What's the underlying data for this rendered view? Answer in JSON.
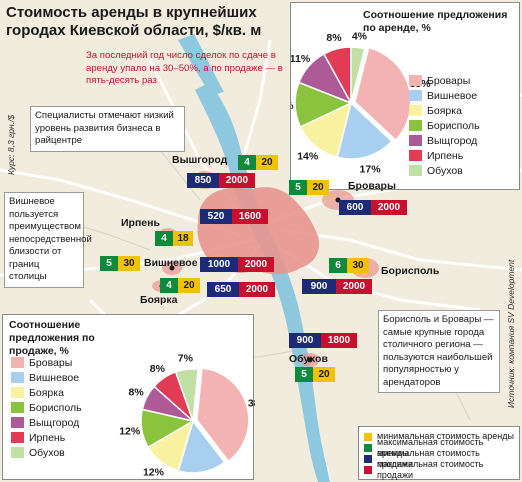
{
  "title": "Стоимость аренды в крупнейших городах Киевской области, $/кв. м",
  "notes": {
    "deals": "За последний год число сделок по сдаче в аренду упало на 30–50%, а по продаже — в пять-десять раз",
    "specialists": "Специалисты отмечают низкий уровень развития бизнеса в райцентре",
    "vishnevoe": "Вишневое пользуется преимуществом непосредственной близости от границ столицы",
    "boryspil": "Борисполь и Бровары — самые крупные города столичного региона — пользуются наибольшей популярностью у арендаторов"
  },
  "side_labels": {
    "rate": "Курс: 8,3 грн./$",
    "source": "Источник: компания SV Development"
  },
  "colors": {
    "navy": "#1d2a78",
    "red": "#c8102e",
    "green": "#0f8a3c",
    "yellow": "#f2c200",
    "water": "#8ec8df",
    "city": "#e8958f",
    "roads": "#ffffff"
  },
  "cities": [
    {
      "id": "vyshgorod",
      "name": "Вышгород",
      "rent_min": "4",
      "rent_max": "20",
      "sale_min": "850",
      "sale_max": "2000"
    },
    {
      "id": "brovary",
      "name": "Бровары",
      "rent_min": "5",
      "rent_max": "20",
      "sale_min": "600",
      "sale_max": "2000"
    },
    {
      "id": "kyiv",
      "name": "",
      "rent_min": "",
      "rent_max": "",
      "sale_min": "520",
      "sale_max": "1600"
    },
    {
      "id": "irpin",
      "name": "Ирпень",
      "rent_min": "4",
      "rent_max": "18",
      "sale_min": "",
      "sale_max": ""
    },
    {
      "id": "vishnevoe",
      "name": "Вишневое",
      "rent_min": "5",
      "rent_max": "30",
      "sale_min": "1000",
      "sale_max": "2000"
    },
    {
      "id": "boyarka",
      "name": "Боярка",
      "rent_min": "4",
      "rent_max": "20",
      "sale_min": "650",
      "sale_max": "2000"
    },
    {
      "id": "boryspil",
      "name": "Борисполь",
      "rent_min": "6",
      "rent_max": "30",
      "sale_min": "900",
      "sale_max": "2000"
    },
    {
      "id": "obukhov",
      "name": "Обухов",
      "rent_min": "5",
      "rent_max": "20",
      "sale_min": "900",
      "sale_max": "1800"
    }
  ],
  "legend": [
    {
      "label": "минимальная стоимость аренды",
      "color": "#f2c200"
    },
    {
      "label": "максимальная стоимость аренды",
      "color": "#0f8a3c"
    },
    {
      "label": "минимальная стоимость продажи",
      "color": "#1d2a78"
    },
    {
      "label": "максимальная стоимость продажи",
      "color": "#c8102e"
    }
  ],
  "chart_data": [
    {
      "type": "pie",
      "title": "Соотношение предложения по аренде, %",
      "categories": [
        "Бровары",
        "Вишневое",
        "Боярка",
        "Борисполь",
        "Выщгород",
        "Ирпень",
        "Обухов"
      ],
      "values": [
        33,
        17,
        14,
        13,
        11,
        8,
        4
      ],
      "colors": [
        "#f4b3b3",
        "#a8cff0",
        "#f8f2a0",
        "#8ac33e",
        "#ae5a96",
        "#e23b54",
        "#c3e0a4"
      ]
    },
    {
      "type": "pie",
      "title": "Соотношение предложения по продаже, %",
      "categories": [
        "Бровары",
        "Вишневое",
        "Боярка",
        "Борисполь",
        "Выщгород",
        "Ирпень",
        "Обухов"
      ],
      "values": [
        38,
        15,
        12,
        12,
        8,
        8,
        7
      ],
      "colors": [
        "#f4b3b3",
        "#a8cff0",
        "#f8f2a0",
        "#8ac33e",
        "#ae5a96",
        "#e23b54",
        "#c3e0a4"
      ]
    }
  ]
}
